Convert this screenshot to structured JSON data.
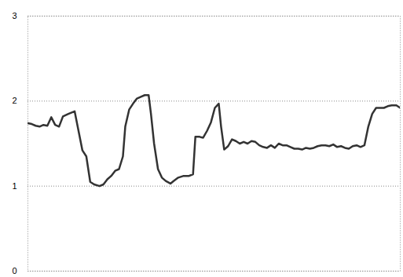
{
  "chart_data": {
    "type": "line",
    "color": "#333333",
    "grid": true,
    "tick_labels": "y",
    "xlim": [
      0,
      478
    ],
    "ylim": [
      0,
      3
    ],
    "yticks": [
      0,
      1,
      2,
      3
    ],
    "x": [
      0,
      5,
      10,
      15,
      20,
      25,
      30,
      35,
      40,
      45,
      52,
      60,
      65,
      70,
      75,
      80,
      85,
      92,
      97,
      102,
      107,
      112,
      117,
      122,
      125,
      130,
      135,
      140,
      145,
      150,
      155,
      158,
      162,
      167,
      172,
      177,
      183,
      187,
      193,
      200,
      207,
      212,
      215,
      220,
      225,
      230,
      235,
      240,
      245,
      248,
      252,
      257,
      262,
      267,
      272,
      277,
      282,
      287,
      292,
      297,
      302,
      307,
      312,
      317,
      322,
      327,
      332,
      337,
      342,
      347,
      352,
      357,
      362,
      367,
      372,
      377,
      382,
      387,
      392,
      397,
      402,
      407,
      412,
      417,
      422,
      427,
      432,
      437,
      442,
      447,
      452,
      457,
      462,
      467,
      473,
      478
    ],
    "values": [
      1.74,
      1.73,
      1.71,
      1.7,
      1.72,
      1.71,
      1.81,
      1.72,
      1.7,
      1.82,
      1.85,
      1.88,
      1.65,
      1.42,
      1.35,
      1.05,
      1.02,
      1.0,
      1.02,
      1.08,
      1.12,
      1.18,
      1.2,
      1.35,
      1.7,
      1.9,
      1.97,
      2.03,
      2.05,
      2.07,
      2.07,
      1.85,
      1.5,
      1.2,
      1.1,
      1.06,
      1.03,
      1.06,
      1.1,
      1.12,
      1.12,
      1.14,
      1.58,
      1.58,
      1.57,
      1.65,
      1.75,
      1.92,
      1.97,
      1.7,
      1.43,
      1.47,
      1.55,
      1.53,
      1.5,
      1.52,
      1.5,
      1.53,
      1.52,
      1.48,
      1.46,
      1.45,
      1.48,
      1.45,
      1.5,
      1.48,
      1.48,
      1.46,
      1.44,
      1.44,
      1.43,
      1.45,
      1.44,
      1.45,
      1.47,
      1.48,
      1.48,
      1.47,
      1.49,
      1.46,
      1.47,
      1.45,
      1.44,
      1.47,
      1.48,
      1.46,
      1.48,
      1.7,
      1.85,
      1.92,
      1.92,
      1.92,
      1.94,
      1.95,
      1.95,
      1.92
    ]
  }
}
